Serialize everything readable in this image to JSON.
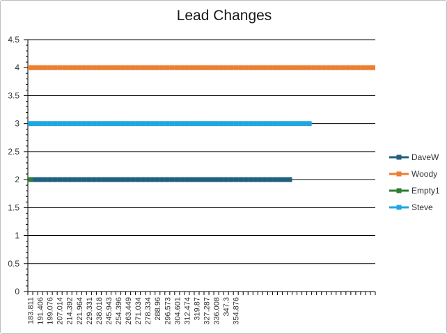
{
  "chart_data": {
    "type": "line",
    "title": "Lead Changes",
    "xlabel": "",
    "ylabel": "",
    "ylim": [
      0,
      4.5
    ],
    "y_ticks": [
      "0",
      "0.5",
      "1",
      "1.5",
      "2",
      "2.5",
      "3",
      "3.5",
      "4",
      "4.5"
    ],
    "grid": true,
    "legend_position": "right",
    "x_tick_labels": [
      "183.811",
      "191.406",
      "199.076",
      "207.014",
      "214.392",
      "221.964",
      "229.331",
      "238.018",
      "245.943",
      "254.396",
      "263.449",
      "271.034",
      "278.334",
      "288.96",
      "296.573",
      "304.601",
      "312.474",
      "319.87",
      "327.287",
      "336.008",
      "347.3",
      "354.876"
    ],
    "x_tick_label_every": 2,
    "n_categories": 71,
    "series": [
      {
        "name": "DaveW",
        "color": "#1f5f7f",
        "value": 2,
        "first_index": 1,
        "last_index": 53
      },
      {
        "name": "Woody",
        "color": "#ed7d31",
        "value": 4,
        "first_index": 0,
        "last_index": 70
      },
      {
        "name": "Empty1",
        "color": "#2e7d32",
        "value": 2,
        "first_index": 0,
        "last_index": 0
      },
      {
        "name": "Steve",
        "color": "#1fa7e0",
        "value": 3,
        "first_index": 0,
        "last_index": 57
      }
    ]
  }
}
